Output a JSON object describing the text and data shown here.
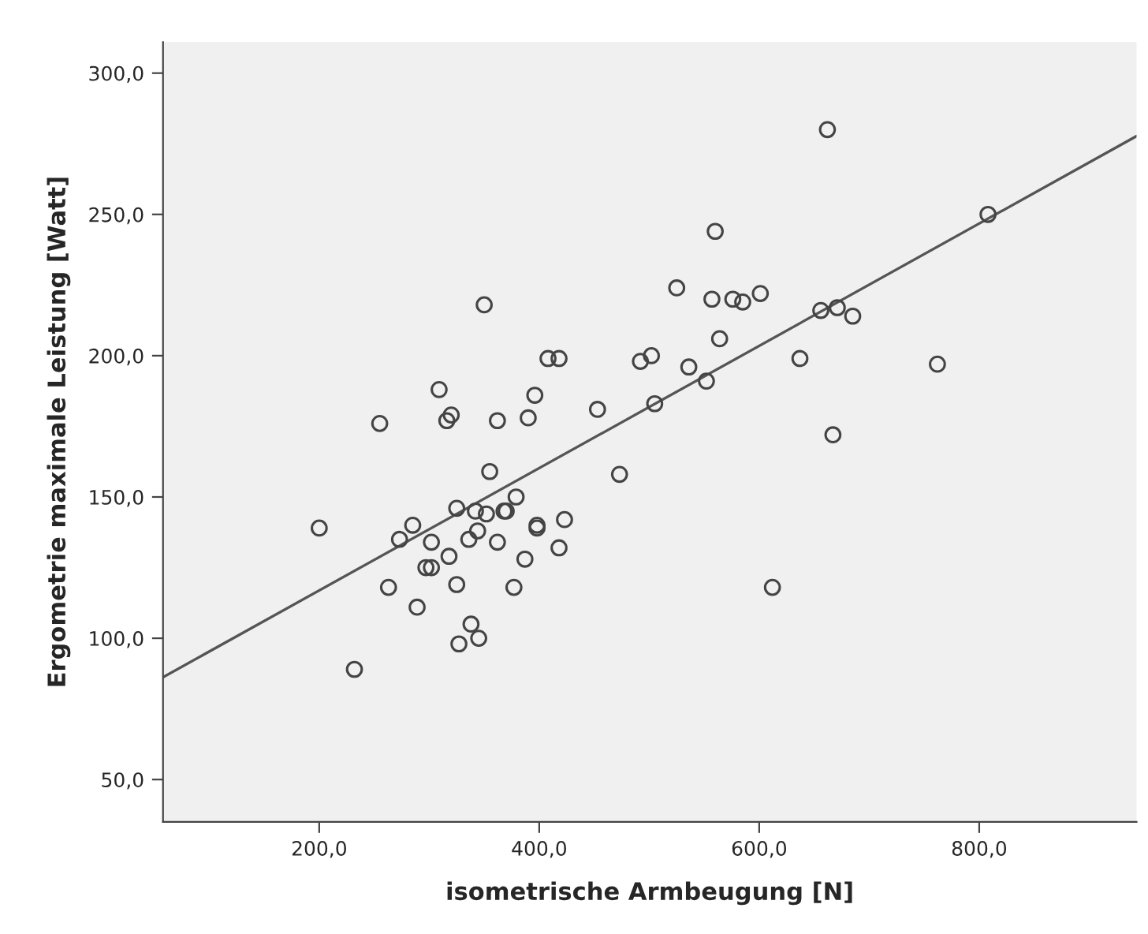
{
  "chart_data": {
    "type": "scatter",
    "xlabel": "isometrische Armbeugung [N]",
    "ylabel": "Ergometrie maximale Leistung [Watt]",
    "xlim": [
      58,
      943
    ],
    "ylim": [
      35,
      311
    ],
    "xticks": [
      {
        "value": 200,
        "label": "200,0"
      },
      {
        "value": 400,
        "label": "400,0"
      },
      {
        "value": 600,
        "label": "600,0"
      },
      {
        "value": 800,
        "label": "800,0"
      }
    ],
    "yticks": [
      {
        "value": 50,
        "label": "50,0"
      },
      {
        "value": 100,
        "label": "100,0"
      },
      {
        "value": 150,
        "label": "150,0"
      },
      {
        "value": 200,
        "label": "200,0"
      },
      {
        "value": 250,
        "label": "250,0"
      },
      {
        "value": 300,
        "label": "300,0"
      }
    ],
    "grid": false,
    "marker": "circle",
    "series": [
      {
        "color": "#444444",
        "x": [
          350,
          408,
          418,
          492,
          502,
          309,
          396,
          453,
          505,
          255,
          316,
          320,
          362,
          390,
          662,
          808,
          560,
          525,
          557,
          576,
          585,
          601,
          656,
          671,
          685,
          564,
          637,
          536,
          552,
          762,
          667,
          612,
          355,
          473,
          379,
          200,
          325,
          342,
          352,
          368,
          370,
          285,
          273,
          302,
          344,
          336,
          362,
          398,
          398,
          423,
          418,
          387,
          318,
          297,
          302,
          263,
          325,
          377,
          289,
          338,
          327,
          345,
          232
        ],
        "values": [
          218,
          199,
          199,
          198,
          200,
          188,
          186,
          181,
          183,
          176,
          177,
          179,
          177,
          178,
          280,
          250,
          244,
          224,
          220,
          220,
          219,
          222,
          216,
          217,
          214,
          206,
          199,
          196,
          191,
          197,
          172,
          118,
          159,
          158,
          150,
          139,
          146,
          145,
          144,
          145,
          145,
          140,
          135,
          134,
          138,
          135,
          134,
          140,
          139,
          142,
          132,
          128,
          129,
          125,
          125,
          118,
          119,
          118,
          111,
          105,
          98,
          100,
          89
        ]
      },
      {
        "type": "line",
        "color": "#555555",
        "marker": "none",
        "line_style": "solid",
        "x": [
          58,
          943
        ],
        "values": [
          86.2,
          277.7
        ]
      }
    ]
  }
}
